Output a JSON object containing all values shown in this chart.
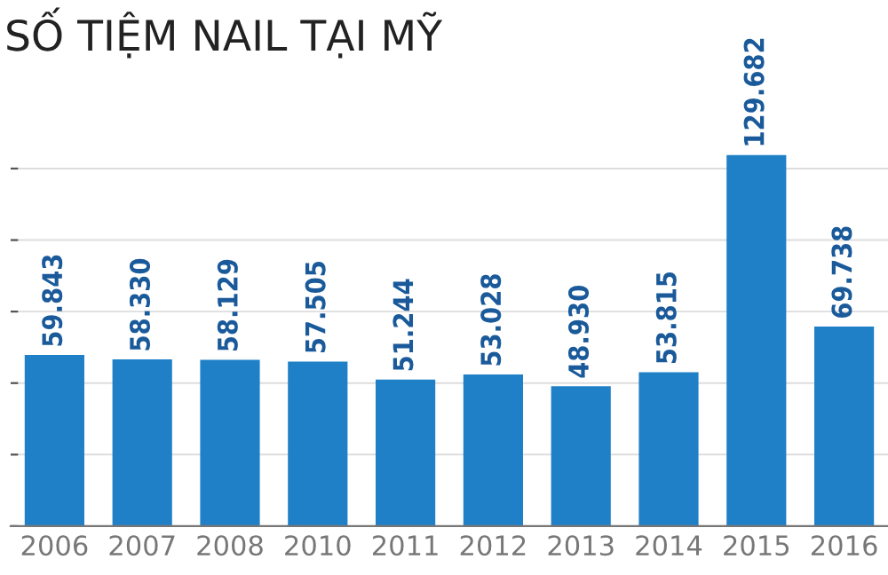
{
  "chart_data": {
    "type": "bar",
    "title": "SỐ TIỆM NAIL TẠI MỸ",
    "categories": [
      "2006",
      "2007",
      "2008",
      "2010",
      "2011",
      "2012",
      "2013",
      "2014",
      "2015",
      "2016"
    ],
    "values": [
      59843,
      58330,
      58129,
      57505,
      51244,
      53028,
      48930,
      53815,
      129682,
      69738
    ],
    "value_labels": [
      "59.843",
      "58.330",
      "58.129",
      "57.505",
      "51.244",
      "53.028",
      "48.930",
      "53.815",
      "129.682",
      "69.738"
    ],
    "color": "#1f80c8",
    "yticks": [
      {
        "value": 0,
        "label": null
      },
      {
        "value": 25000,
        "label": null
      },
      {
        "value": 50000,
        "label": null
      },
      {
        "value": 75000,
        "label": null
      },
      {
        "value": 100000,
        "label": null
      },
      {
        "value": 125000,
        "label": null
      }
    ],
    "grid": "y"
  }
}
